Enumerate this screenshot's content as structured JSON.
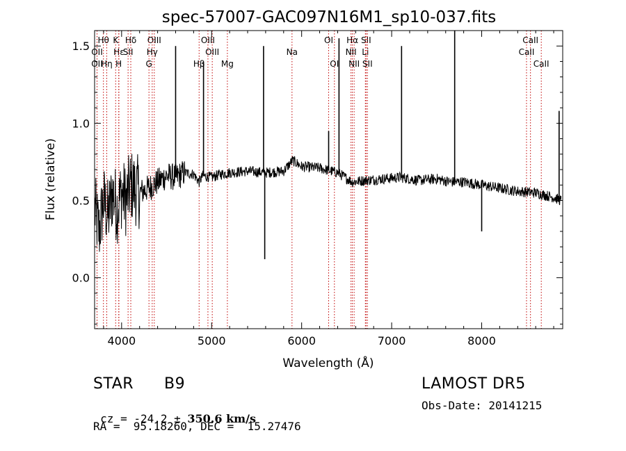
{
  "chart_data": {
    "type": "line",
    "title": "spec-57007-GAC097N16M1_sp10-037.fits",
    "xlabel": "Wavelength (Å)",
    "ylabel": "Flux (relative)",
    "xlim": [
      3700,
      8900
    ],
    "ylim": [
      -0.33,
      1.6
    ],
    "xticks": [
      4000,
      5000,
      6000,
      7000,
      8000
    ],
    "xtick_labels": [
      "4000",
      "5000",
      "6000",
      "7000",
      "8000"
    ],
    "yticks": [
      0.0,
      0.5,
      1.0,
      1.5
    ],
    "ytick_labels": [
      "0.0",
      "0.5",
      "1.0",
      "1.5"
    ],
    "grid": false,
    "line_color": "#000000",
    "marker_color": "#c00000",
    "series": [
      {
        "values": [
          {
            "x": 3700,
            "y": 0.45
          },
          {
            "x": 3750,
            "y": 0.3
          },
          {
            "x": 3800,
            "y": 0.5
          },
          {
            "x": 3850,
            "y": 0.4
          },
          {
            "x": 3900,
            "y": 0.55
          },
          {
            "x": 3950,
            "y": 0.45
          },
          {
            "x": 4000,
            "y": 0.55
          },
          {
            "x": 4050,
            "y": 0.5
          },
          {
            "x": 4100,
            "y": 0.6
          },
          {
            "x": 4200,
            "y": 0.55
          },
          {
            "x": 4300,
            "y": 0.58
          },
          {
            "x": 4400,
            "y": 0.62
          },
          {
            "x": 4500,
            "y": 0.66
          },
          {
            "x": 4600,
            "y": 0.65
          },
          {
            "x": 4700,
            "y": 0.68
          },
          {
            "x": 4800,
            "y": 0.67
          },
          {
            "x": 4861,
            "y": 0.62
          },
          {
            "x": 4900,
            "y": 0.66
          },
          {
            "x": 5000,
            "y": 0.65
          },
          {
            "x": 5100,
            "y": 0.67
          },
          {
            "x": 5200,
            "y": 0.68
          },
          {
            "x": 5400,
            "y": 0.69
          },
          {
            "x": 5600,
            "y": 0.68
          },
          {
            "x": 5800,
            "y": 0.69
          },
          {
            "x": 5900,
            "y": 0.76
          },
          {
            "x": 6000,
            "y": 0.72
          },
          {
            "x": 6200,
            "y": 0.71
          },
          {
            "x": 6400,
            "y": 0.68
          },
          {
            "x": 6563,
            "y": 0.62
          },
          {
            "x": 6700,
            "y": 0.63
          },
          {
            "x": 6900,
            "y": 0.64
          },
          {
            "x": 7100,
            "y": 0.65
          },
          {
            "x": 7300,
            "y": 0.63
          },
          {
            "x": 7500,
            "y": 0.64
          },
          {
            "x": 7650,
            "y": 0.62
          },
          {
            "x": 7800,
            "y": 0.62
          },
          {
            "x": 8000,
            "y": 0.6
          },
          {
            "x": 8200,
            "y": 0.58
          },
          {
            "x": 8400,
            "y": 0.56
          },
          {
            "x": 8600,
            "y": 0.55
          },
          {
            "x": 8800,
            "y": 0.52
          },
          {
            "x": 8880,
            "y": 0.5
          }
        ]
      }
    ],
    "spikes": [
      {
        "x": 4600,
        "y": 1.5
      },
      {
        "x": 4910,
        "y": 1.4
      },
      {
        "x": 5577,
        "y": 1.5
      },
      {
        "x": 5590,
        "y": 0.12
      },
      {
        "x": 6300,
        "y": 0.95
      },
      {
        "x": 6415,
        "y": 1.55
      },
      {
        "x": 7110,
        "y": 1.5
      },
      {
        "x": 7700,
        "y": 1.6
      },
      {
        "x": 8000,
        "y": 0.3
      },
      {
        "x": 8860,
        "y": 1.08
      }
    ],
    "lines": [
      {
        "label": "Hθ",
        "x": 3798,
        "row": 0
      },
      {
        "label": "OII",
        "x": 3727,
        "row": 1
      },
      {
        "label": "OII",
        "x": 3727,
        "row": 2
      },
      {
        "label": "K",
        "x": 3934,
        "row": 0
      },
      {
        "label": "Hε",
        "x": 3970,
        "row": 1
      },
      {
        "label": "Hη",
        "x": 3835,
        "row": 2
      },
      {
        "label": "H",
        "x": 3968,
        "row": 2
      },
      {
        "label": "Hδ",
        "x": 4102,
        "row": 0
      },
      {
        "label": "SII",
        "x": 4072,
        "row": 1
      },
      {
        "label": "OIII",
        "x": 4363,
        "row": 0
      },
      {
        "label": "Hγ",
        "x": 4340,
        "row": 1
      },
      {
        "label": "G",
        "x": 4304,
        "row": 2
      },
      {
        "label": "Hβ",
        "x": 4861,
        "row": 2
      },
      {
        "label": "OIII",
        "x": 4959,
        "row": 0
      },
      {
        "label": "OIII",
        "x": 5007,
        "row": 1
      },
      {
        "label": "Mg",
        "x": 5175,
        "row": 2
      },
      {
        "label": "Na",
        "x": 5893,
        "row": 1
      },
      {
        "label": "OI",
        "x": 6300,
        "row": 0
      },
      {
        "label": "OI",
        "x": 6364,
        "row": 2
      },
      {
        "label": "Hα",
        "x": 6563,
        "row": 0
      },
      {
        "label": "SII",
        "x": 6716,
        "row": 0
      },
      {
        "label": "NII",
        "x": 6548,
        "row": 1
      },
      {
        "label": "Li",
        "x": 6708,
        "row": 1
      },
      {
        "label": "NII",
        "x": 6583,
        "row": 2
      },
      {
        "label": "SII",
        "x": 6731,
        "row": 2
      },
      {
        "label": "CaII",
        "x": 8542,
        "row": 0
      },
      {
        "label": "CaII",
        "x": 8498,
        "row": 1
      },
      {
        "label": "CaII",
        "x": 8662,
        "row": 2
      }
    ]
  },
  "info": {
    "object_type": "STAR",
    "subclass": "B9",
    "release": "LAMOST DR5",
    "cz_prefix": "cz = -24.2 ± ",
    "cz_value": "350.6 km/s",
    "obs_date": "Obs-Date: 20141215",
    "coords": "RA =  95.18260, DEC =  15.27476"
  }
}
